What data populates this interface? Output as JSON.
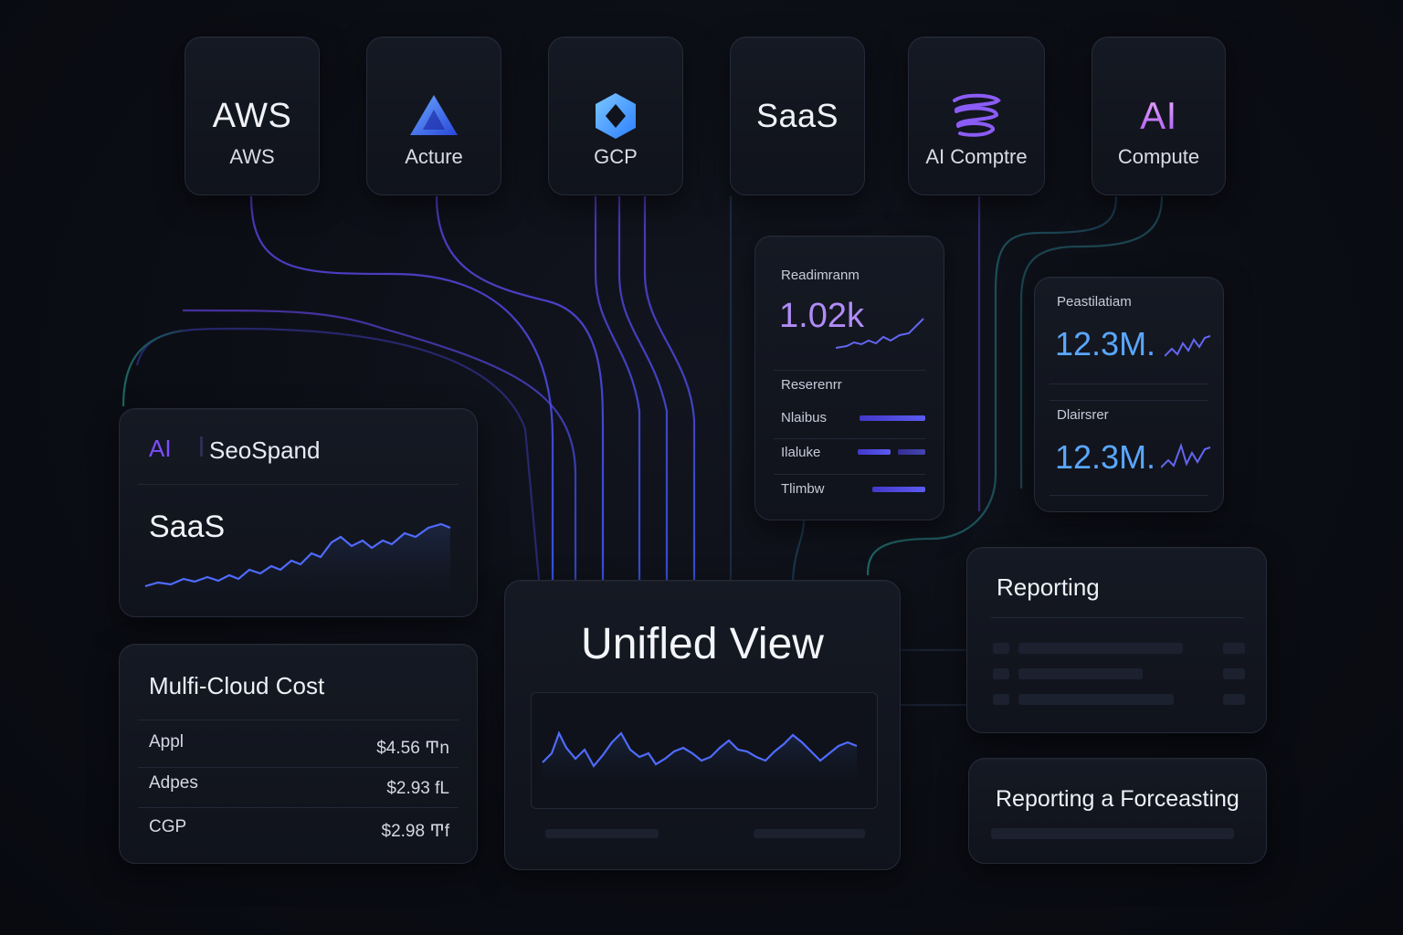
{
  "sources": [
    {
      "logo_text": "AWS",
      "label": "AWS",
      "icon": "aws-logo"
    },
    {
      "logo_text": "",
      "label": "Acture",
      "icon": "azure-triangle-icon"
    },
    {
      "logo_text": "",
      "label": "GCP",
      "icon": "gcp-hexagon-icon"
    },
    {
      "logo_text": "SaaS",
      "label": "",
      "icon": "saas-logo"
    },
    {
      "logo_text": "",
      "label": "AI Comptre",
      "icon": "ai-swirl-icon"
    },
    {
      "logo_text": "AI",
      "label": "Compute",
      "icon": "ai-logo"
    }
  ],
  "resource_card": {
    "metric_label": "Readimranm",
    "metric_value": "1.02k",
    "section_label": "Reserenrr",
    "rows": [
      {
        "label": "Nlaibus",
        "level": 0.95
      },
      {
        "label": "Ilaluke",
        "level": 0.8
      },
      {
        "label": "Tlimbw",
        "level": 0.7
      }
    ]
  },
  "spend_card": {
    "metric1_label": "Peastilatiam",
    "metric1_value": "12.3M.",
    "metric2_label": "Dlairsrer",
    "metric2_value": "12.3M."
  },
  "seospand_card": {
    "ai_badge": "AI",
    "title": "SeoSpand",
    "subtitle": "SaaS"
  },
  "multicloud_card": {
    "title": "Mulfi-Cloud Cost",
    "rows": [
      {
        "label": "Appl",
        "value": "$4.56 Ͳn"
      },
      {
        "label": "Adpes",
        "value": "$2.93 fL"
      },
      {
        "label": "CGP",
        "value": "$2.98 Ͳf"
      }
    ]
  },
  "unified_card": {
    "title": "Unifled View"
  },
  "reporting_card": {
    "title": "Reporting"
  },
  "forecast_card": {
    "title": "Reporting a Forceasting"
  },
  "colors": {
    "accent_purple": "#a78bfa",
    "accent_blue": "#5aa7ff",
    "line_blue": "#4f6bff",
    "ai_pink": "#e879f9"
  }
}
